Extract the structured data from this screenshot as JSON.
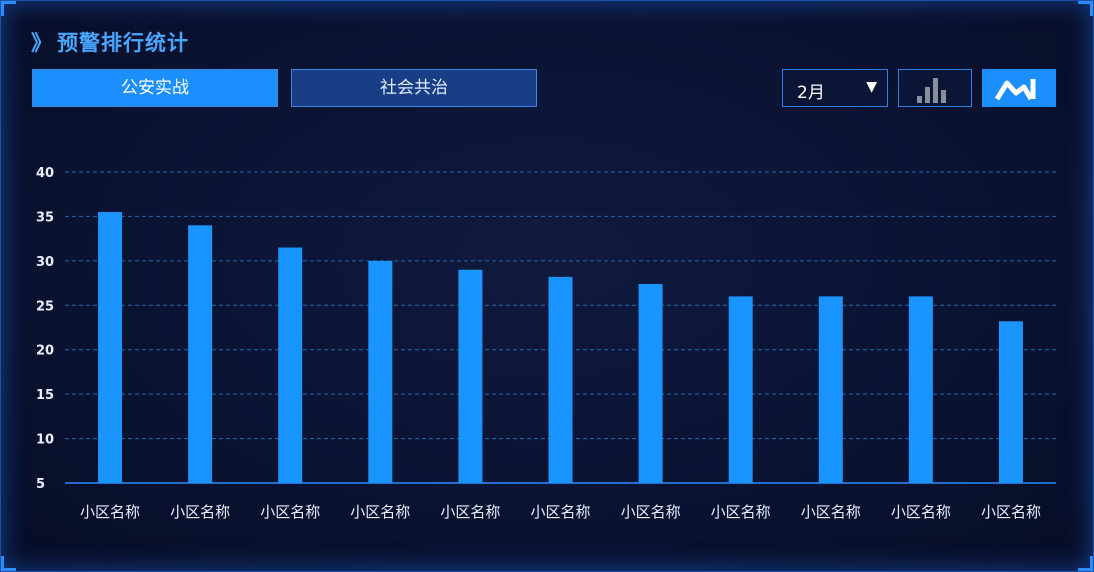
{
  "panel": {
    "title": "预警排行统计",
    "title_prefix": "》"
  },
  "tabs": [
    {
      "label": "公安实战",
      "active": true
    },
    {
      "label": "社会共治",
      "active": false
    }
  ],
  "month_select": {
    "value": "2月",
    "caret": "▼"
  },
  "view_toggle": {
    "bar_icon": "bar-chart-icon",
    "line_icon": "line-chart-icon",
    "active": "line"
  },
  "colors": {
    "accent": "#1c8fff",
    "bar": "#1a94ff",
    "grid": "#1f6aa8",
    "background": "#0b1333"
  },
  "chart_data": {
    "type": "bar",
    "title": "",
    "xlabel": "",
    "ylabel": "",
    "categories": [
      "小区名称",
      "小区名称",
      "小区名称",
      "小区名称",
      "小区名称",
      "小区名称",
      "小区名称",
      "小区名称",
      "小区名称",
      "小区名称",
      "小区名称"
    ],
    "values": [
      35.5,
      34,
      31.5,
      30,
      29,
      28.2,
      27.4,
      26,
      26,
      26,
      23.2
    ],
    "yticks": [
      5,
      10,
      15,
      20,
      25,
      30,
      35,
      40
    ],
    "ylim": [
      5,
      40
    ],
    "grid": true,
    "grid_style": "dashed"
  }
}
